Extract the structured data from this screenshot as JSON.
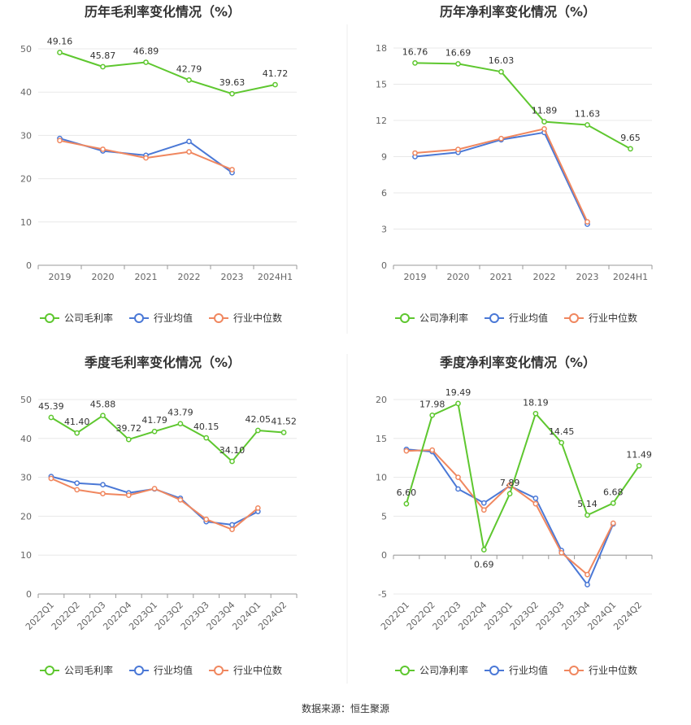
{
  "source_text": "数据来源：恒生聚源",
  "colors": {
    "company": "#5ec72f",
    "avg": "#4a78d6",
    "median": "#f0875f"
  },
  "chart_data": [
    {
      "type": "line",
      "title": "历年毛利率变化情况（%）",
      "categories": [
        "2019",
        "2020",
        "2021",
        "2022",
        "2023",
        "2024H1"
      ],
      "ylim": [
        0,
        50
      ],
      "yticks": [
        0,
        10,
        20,
        30,
        40,
        50
      ],
      "series": [
        {
          "name": "公司毛利率",
          "color": "#5ec72f",
          "labels": true,
          "values": [
            49.16,
            45.87,
            46.89,
            42.79,
            39.63,
            41.72
          ]
        },
        {
          "name": "行业均值",
          "color": "#4a78d6",
          "labels": false,
          "values": [
            29.3,
            26.4,
            25.4,
            28.6,
            21.4,
            null
          ]
        },
        {
          "name": "行业中位数",
          "color": "#f0875f",
          "labels": false,
          "values": [
            28.8,
            26.8,
            24.8,
            26.2,
            22.1,
            null
          ]
        }
      ],
      "grid": true,
      "legend": "bottom"
    },
    {
      "type": "line",
      "title": "历年净利率变化情况（%）",
      "categories": [
        "2019",
        "2020",
        "2021",
        "2022",
        "2023",
        "2024H1"
      ],
      "ylim": [
        0,
        18
      ],
      "yticks": [
        0,
        3,
        6,
        9,
        12,
        15,
        18
      ],
      "series": [
        {
          "name": "公司净利率",
          "color": "#5ec72f",
          "labels": true,
          "values": [
            16.76,
            16.69,
            16.03,
            11.89,
            11.63,
            9.65
          ]
        },
        {
          "name": "行业均值",
          "color": "#4a78d6",
          "labels": false,
          "values": [
            9.0,
            9.35,
            10.4,
            11.0,
            3.4,
            null
          ]
        },
        {
          "name": "行业中位数",
          "color": "#f0875f",
          "labels": false,
          "values": [
            9.3,
            9.6,
            10.5,
            11.3,
            3.6,
            null
          ]
        }
      ],
      "grid": true,
      "legend": "bottom"
    },
    {
      "type": "line",
      "title": "季度毛利率变化情况（%）",
      "categories": [
        "2022Q1",
        "2022Q2",
        "2022Q3",
        "2022Q4",
        "2023Q1",
        "2023Q2",
        "2023Q3",
        "2023Q4",
        "2024Q1",
        "2024Q2"
      ],
      "ylim": [
        0,
        50
      ],
      "yticks": [
        0,
        10,
        20,
        30,
        40,
        50
      ],
      "series": [
        {
          "name": "公司毛利率",
          "color": "#5ec72f",
          "labels": true,
          "values": [
            45.39,
            41.4,
            45.88,
            39.72,
            41.79,
            43.79,
            40.15,
            34.1,
            42.05,
            41.52
          ]
        },
        {
          "name": "行业均值",
          "color": "#4a78d6",
          "labels": false,
          "values": [
            30.2,
            28.5,
            28.1,
            26.0,
            27.0,
            24.6,
            18.6,
            17.8,
            21.2,
            null
          ]
        },
        {
          "name": "行业中位数",
          "color": "#f0875f",
          "labels": false,
          "values": [
            29.7,
            26.8,
            25.8,
            25.4,
            27.1,
            24.2,
            19.2,
            16.6,
            22.1,
            null
          ]
        }
      ],
      "grid": true,
      "legend": "bottom"
    },
    {
      "type": "line",
      "title": "季度净利率变化情况（%）",
      "categories": [
        "2022Q1",
        "2022Q2",
        "2022Q3",
        "2022Q4",
        "2023Q1",
        "2023Q2",
        "2023Q3",
        "2023Q4",
        "2024Q1",
        "2024Q2"
      ],
      "ylim": [
        -5,
        20
      ],
      "yticks": [
        -5,
        0,
        5,
        10,
        15,
        20
      ],
      "series": [
        {
          "name": "公司净利率",
          "color": "#5ec72f",
          "labels": true,
          "values": [
            6.6,
            17.98,
            19.49,
            0.69,
            7.89,
            18.19,
            14.45,
            5.14,
            6.68,
            11.49
          ]
        },
        {
          "name": "行业均值",
          "color": "#4a78d6",
          "labels": false,
          "values": [
            13.6,
            13.3,
            8.5,
            6.7,
            8.9,
            7.3,
            0.6,
            -3.8,
            4.0,
            null
          ]
        },
        {
          "name": "行业中位数",
          "color": "#f0875f",
          "labels": false,
          "values": [
            13.4,
            13.5,
            10.0,
            5.8,
            9.0,
            6.6,
            0.3,
            -2.5,
            4.1,
            null
          ]
        }
      ],
      "grid": true,
      "legend": "bottom"
    }
  ]
}
